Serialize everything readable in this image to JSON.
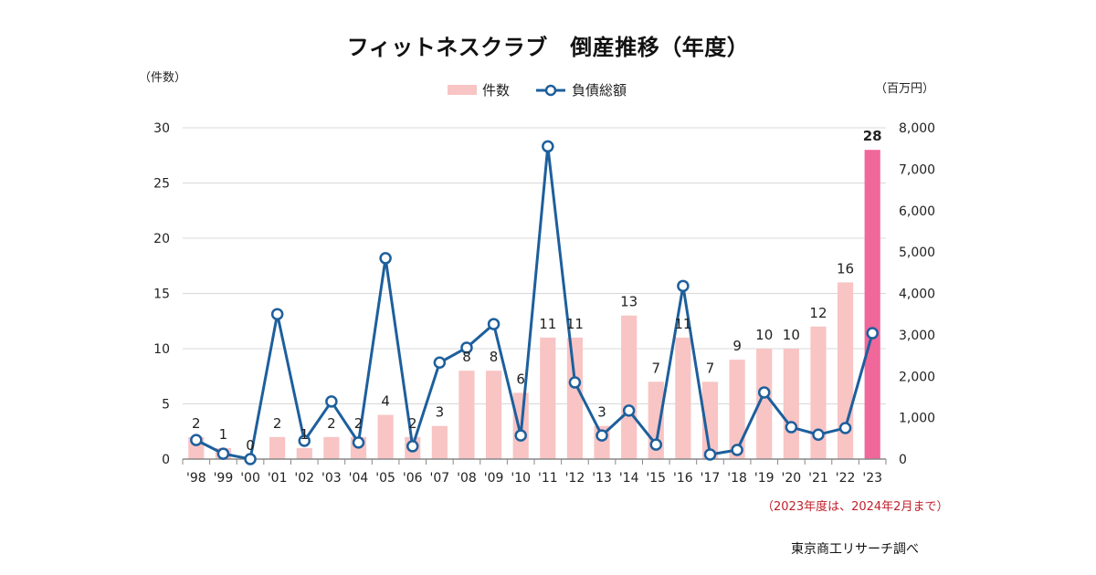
{
  "chart_data": {
    "type": "bar+line",
    "title": "フィットネスクラブ　倒産推移（年度）",
    "categories": [
      "'98",
      "'99",
      "'00",
      "'01",
      "'02",
      "'03",
      "'04",
      "'05",
      "'06",
      "'07",
      "'08",
      "'09",
      "'10",
      "'11",
      "'12",
      "'13",
      "'14",
      "'15",
      "'16",
      "'17",
      "'18",
      "'19",
      "'20",
      "'21",
      "'22",
      "'23"
    ],
    "series": [
      {
        "name": "件数",
        "type": "bar",
        "axis": "left",
        "values": [
          2,
          1,
          0,
          2,
          1,
          2,
          2,
          4,
          2,
          3,
          8,
          8,
          6,
          11,
          11,
          3,
          13,
          7,
          11,
          7,
          9,
          10,
          10,
          12,
          16,
          28
        ],
        "data_labels": [
          "2",
          "1",
          "0",
          "2",
          "1",
          "2",
          "2",
          "4",
          "2",
          "3",
          "8",
          "8",
          "6",
          "11",
          "11",
          "3",
          "13",
          "7",
          "11",
          "7",
          "9",
          "10",
          "10",
          "12",
          "16",
          "28"
        ]
      },
      {
        "name": "負債総額",
        "type": "line",
        "axis": "right",
        "values": [
          460,
          130,
          0,
          3500,
          440,
          1390,
          400,
          4850,
          310,
          2330,
          2690,
          3260,
          570,
          7550,
          1850,
          570,
          1170,
          350,
          4180,
          110,
          220,
          1610,
          770,
          590,
          750,
          3040
        ]
      }
    ],
    "y_left": {
      "label": "（件数）",
      "range": [
        0,
        30
      ],
      "ticks": [
        "0",
        "5",
        "10",
        "15",
        "20",
        "25",
        "30"
      ]
    },
    "y_right": {
      "label": "（百万円）",
      "range": [
        0,
        8000
      ],
      "ticks": [
        "0",
        "1,000",
        "2,000",
        "3,000",
        "4,000",
        "5,000",
        "6,000",
        "7,000",
        "8,000"
      ]
    },
    "grid": true,
    "legend_position": "top-center",
    "highlight": {
      "category": "'23",
      "label": "28"
    }
  },
  "colors": {
    "bar": "#f8c4c4",
    "bar_highlight": "#f0679a",
    "highlight_label": "#c8145a",
    "line": "#1d5f9c",
    "grid": "#d8d8d8",
    "note": "#c0202a"
  },
  "note": "（2023年度は、2024年2月まで）",
  "source": "東京商工リサーチ調べ"
}
